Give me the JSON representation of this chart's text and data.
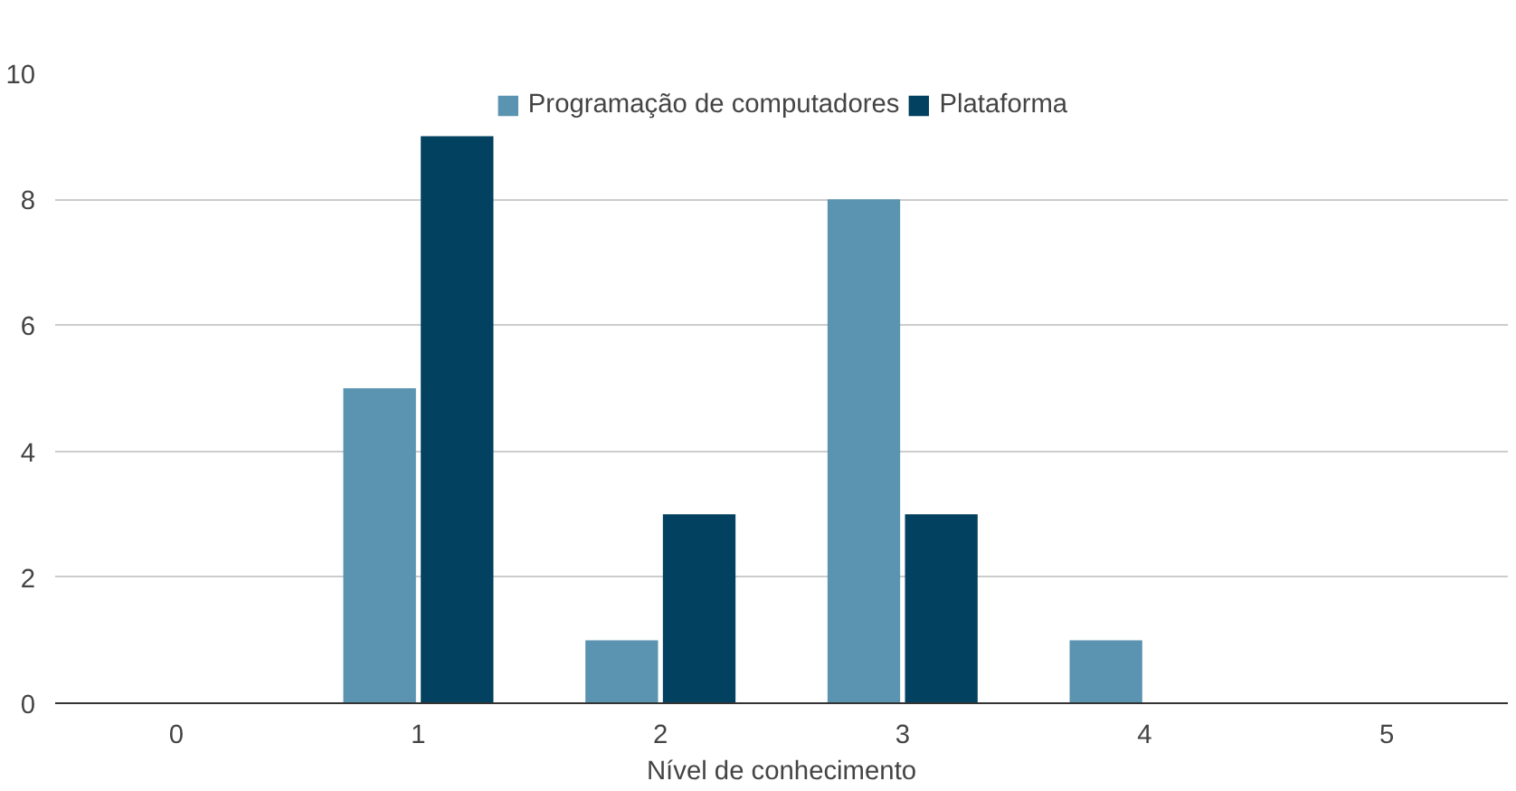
{
  "chart_data": {
    "type": "bar",
    "xlabel": "Nível de conhecimento",
    "categories": [
      "0",
      "1",
      "2",
      "3",
      "4",
      "5"
    ],
    "series": [
      {
        "name": "Programação de computadores",
        "color": "#5a94b0",
        "values": [
          0,
          5,
          1,
          8,
          1,
          0
        ]
      },
      {
        "name": "Plataforma",
        "color": "#02415f",
        "values": [
          0,
          9,
          3,
          3,
          0,
          0
        ]
      }
    ],
    "ylim": [
      0,
      10
    ],
    "yticks": [
      0,
      2,
      4,
      6,
      8,
      10
    ],
    "grid": "y",
    "legend": "top"
  }
}
